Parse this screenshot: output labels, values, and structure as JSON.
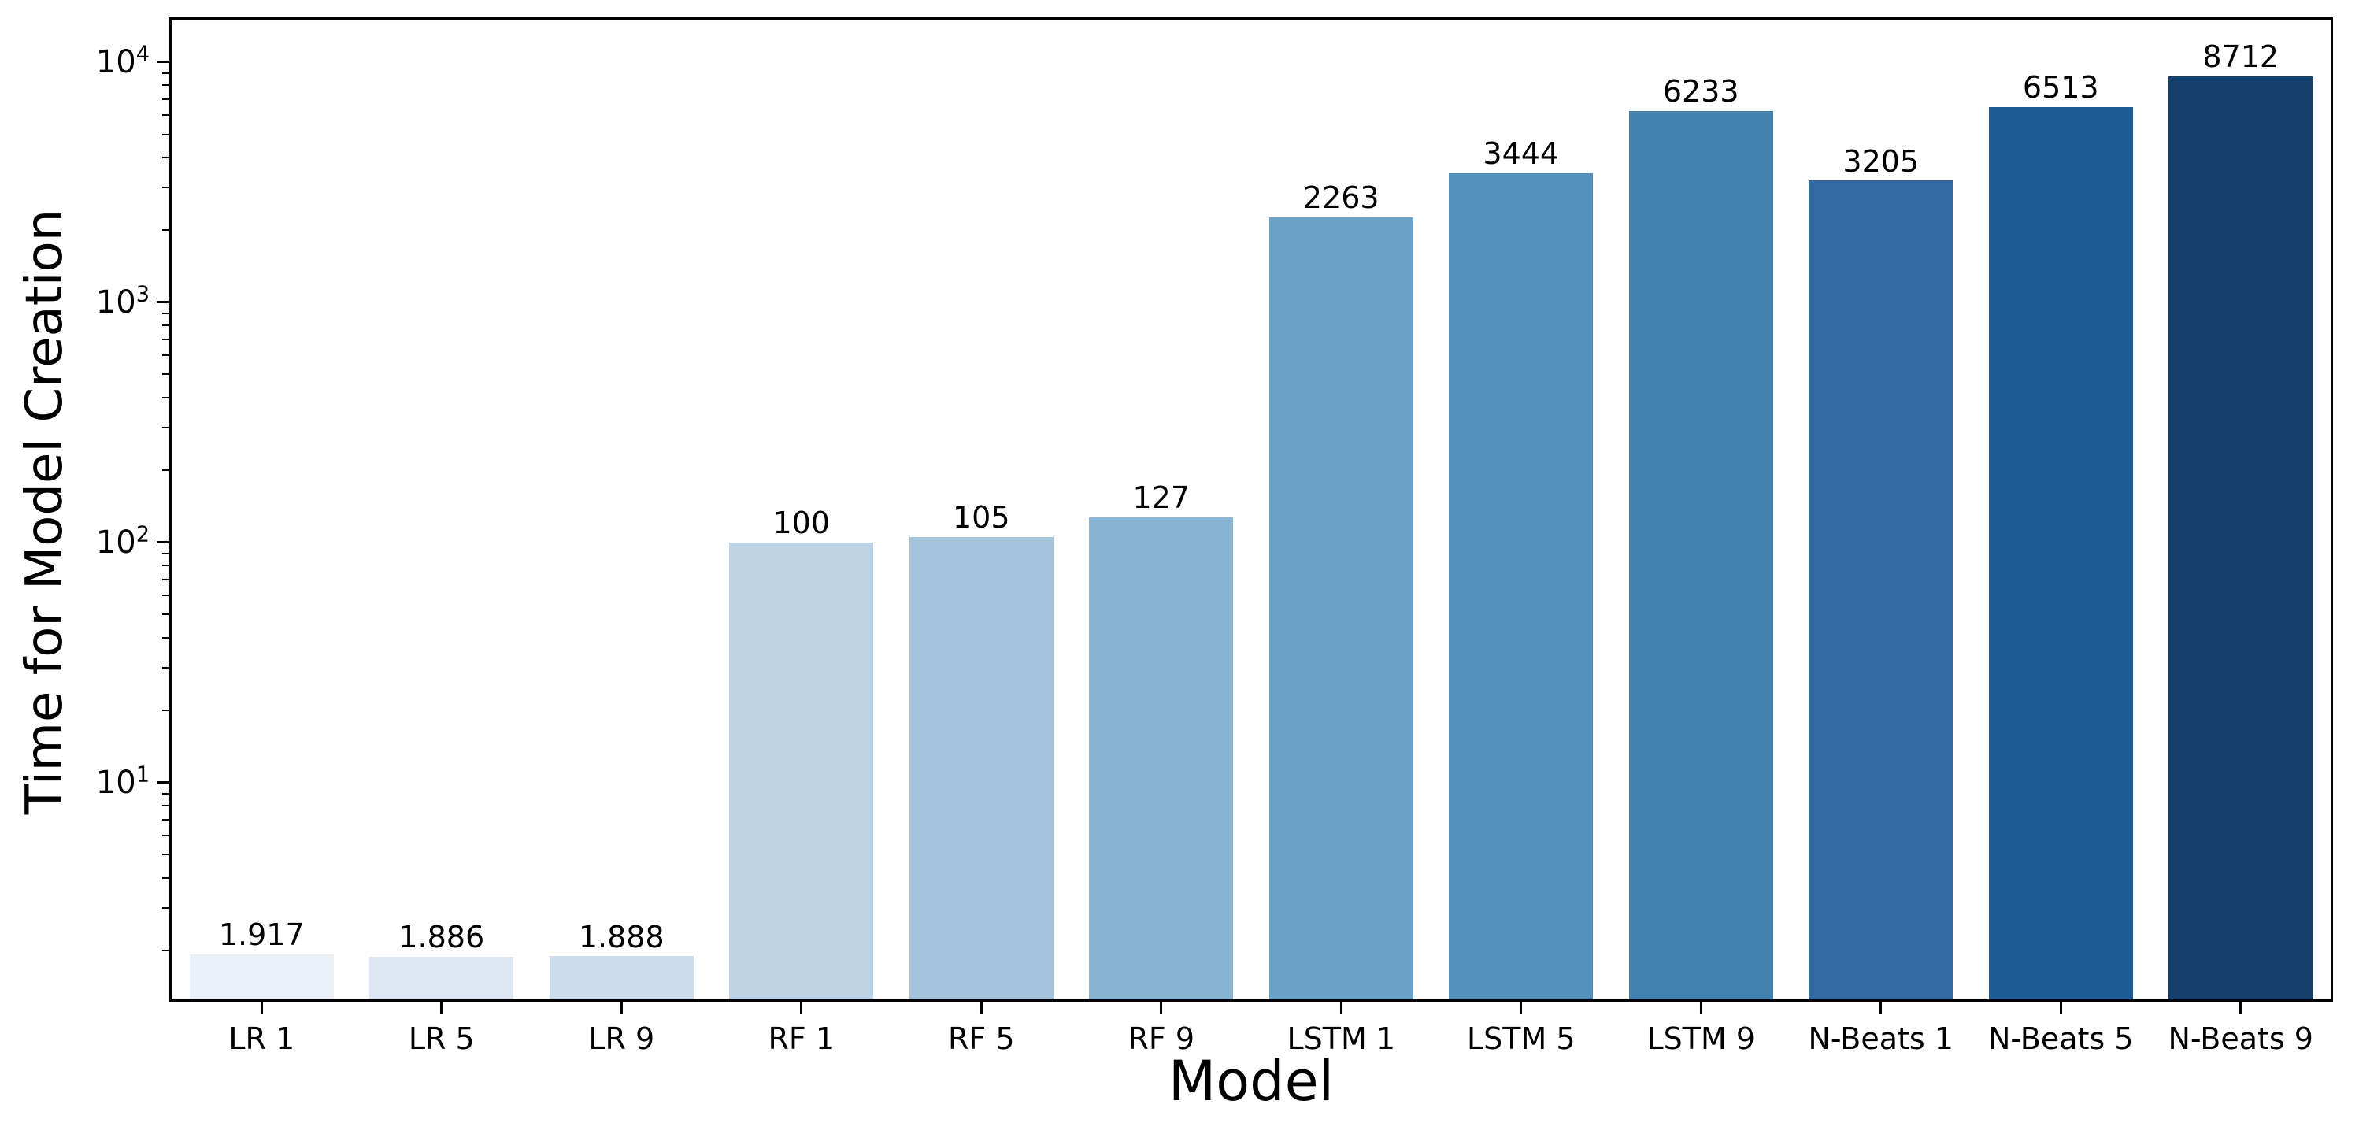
{
  "figure": {
    "background_color": "#ffffff",
    "axis_color": "#000000",
    "text_color": "#000000"
  },
  "chart_data": {
    "type": "bar",
    "title": "",
    "xlabel": "Model",
    "ylabel": "Time for Model Creation",
    "yscale": "log",
    "ylim": [
      1.25,
      15000
    ],
    "y_tick_base": 10,
    "y_tick_exponents": [
      1,
      2,
      3,
      4
    ],
    "grid": false,
    "legend": null,
    "bar_width_fraction": 0.8,
    "categories": [
      "LR 1",
      "LR 5",
      "LR 9",
      "RF 1",
      "RF 5",
      "RF 9",
      "LSTM 1",
      "LSTM 5",
      "LSTM 9",
      "N-Beats 1",
      "N-Beats 5",
      "N-Beats 9"
    ],
    "values": [
      1.917,
      1.886,
      1.888,
      100,
      105,
      127,
      2263,
      3444,
      6233,
      3205,
      6513,
      8712
    ],
    "bar_labels": [
      "1.917",
      "1.886",
      "1.888",
      "100",
      "105",
      "127",
      "2263",
      "3444",
      "6233",
      "3205",
      "6513",
      "8712"
    ],
    "bar_colors": [
      "#e9f0f8",
      "#dde7f2",
      "#cddded",
      "#bcd2e5",
      "#a4c4db",
      "#89b5d3",
      "#6ba1c7",
      "#5590bb",
      "#4280ae",
      "#33699f",
      "#205c94",
      "#15406e"
    ]
  }
}
